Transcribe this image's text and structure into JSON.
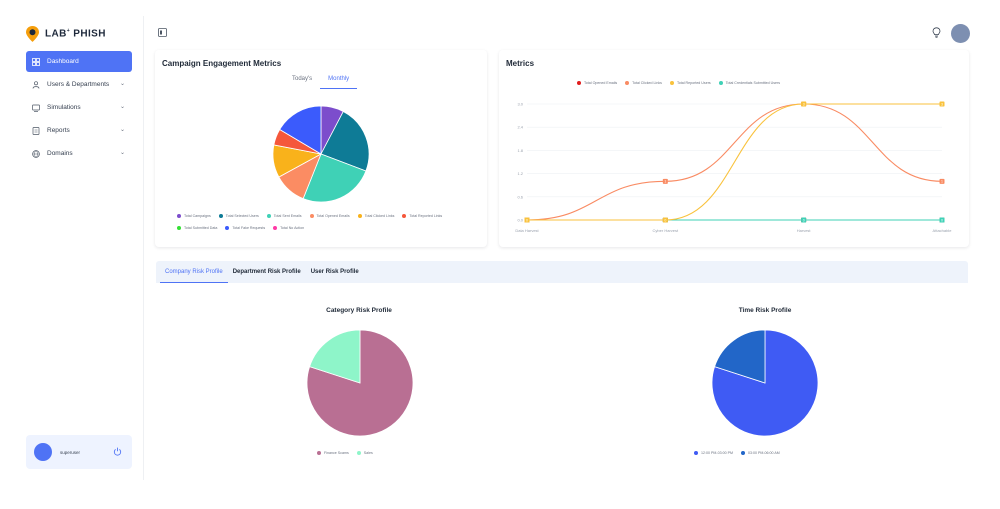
{
  "brand": {
    "name": "LAB",
    "super": "+",
    "name2": "PHISH"
  },
  "sidebar": {
    "items": [
      {
        "label": "Dashboard",
        "icon": "dashboard-icon",
        "active": true
      },
      {
        "label": "Users & Departments",
        "icon": "users-icon"
      },
      {
        "label": "Simulations",
        "icon": "simulation-icon"
      },
      {
        "label": "Reports",
        "icon": "report-icon"
      },
      {
        "label": "Domains",
        "icon": "globe-icon"
      }
    ],
    "user": {
      "name": "superuser"
    }
  },
  "engagement": {
    "title": "Campaign Engagement Metrics",
    "tabs": [
      "Today's",
      "Monthly"
    ],
    "active_tab": "Monthly",
    "legend": [
      {
        "label": "Total Campaigns",
        "color": "#7c4dcc"
      },
      {
        "label": "Total Selected Users",
        "color": "#0e7b96"
      },
      {
        "label": "Total Sent Emails",
        "color": "#3fd1b6"
      },
      {
        "label": "Total Opened Emails",
        "color": "#fb8c63"
      },
      {
        "label": "Total Clicked Links",
        "color": "#f9b21b"
      },
      {
        "label": "Total Reported Links",
        "color": "#f5573b"
      },
      {
        "label": "Total Submitted Data",
        "color": "#34e034"
      },
      {
        "label": "Total Fake Requests",
        "color": "#3b5bfc"
      },
      {
        "label": "Total No Action",
        "color": "#ff3aa6"
      }
    ]
  },
  "metrics": {
    "title": "Metrics",
    "legend": [
      {
        "label": "Total Opened Emails",
        "color": "#e11d1d"
      },
      {
        "label": "Total Clicked Links",
        "color": "#f98b63"
      },
      {
        "label": "Total Reported Users",
        "color": "#f9c23c"
      },
      {
        "label": "Total Credentials Submitted Users",
        "color": "#3fd1b6"
      }
    ]
  },
  "risk": {
    "tabs": [
      "Company Risk Profile",
      "Department Risk Profile",
      "User Risk Profile"
    ],
    "active_tab": "Company Risk Profile",
    "category": {
      "title": "Category Risk Profile",
      "legend": [
        {
          "label": "Finance Scams",
          "color": "#b96f93"
        },
        {
          "label": "Sales",
          "color": "#8ef5c9"
        }
      ]
    },
    "time": {
      "title": "Time Risk Profile",
      "legend": [
        {
          "label": "12:00 PM-03:00 PM",
          "color": "#3f5bf4"
        },
        {
          "label": "03:00 PM-06:00 AM",
          "color": "#2266c8"
        }
      ]
    }
  },
  "chart_data": [
    {
      "type": "pie",
      "title": "Campaign Engagement Metrics",
      "labels": [
        "Total Campaigns",
        "Total Selected Users",
        "Total Sent Emails",
        "Total Opened Emails",
        "Total Clicked Links",
        "Total Reported Links",
        "Total Fake Requests"
      ],
      "values": [
        7,
        21,
        23,
        10,
        10,
        5,
        15
      ],
      "colors": [
        "#7c4dcc",
        "#0e7b96",
        "#3fd1b6",
        "#fb8c63",
        "#f9b21b",
        "#f5573b",
        "#3b5bfc"
      ]
    },
    {
      "type": "line",
      "title": "Metrics",
      "categories": [
        "Data Harvest",
        "Cyber Harvest",
        "Harvest",
        "Attachable"
      ],
      "y_ticks": [
        0.0,
        0.6,
        1.2,
        1.8,
        2.4,
        3.0
      ],
      "ylim": [
        0,
        3
      ],
      "series": [
        {
          "name": "Total Opened Emails",
          "color": "#e11d1d",
          "values": [
            0,
            0,
            0,
            0
          ]
        },
        {
          "name": "Total Clicked Links",
          "color": "#f98b63",
          "values": [
            0,
            1,
            3,
            1
          ]
        },
        {
          "name": "Total Reported Users",
          "color": "#f9c23c",
          "values": [
            0,
            0,
            3,
            3
          ]
        },
        {
          "name": "Total Credentials Submitted Users",
          "color": "#3fd1b6",
          "values": [
            0,
            0,
            0,
            0
          ]
        }
      ]
    },
    {
      "type": "pie",
      "title": "Category Risk Profile",
      "labels": [
        "Finance Scams",
        "Sales"
      ],
      "values": [
        80,
        20
      ],
      "colors": [
        "#b96f93",
        "#8ef5c9"
      ]
    },
    {
      "type": "pie",
      "title": "Time Risk Profile",
      "labels": [
        "12:00 PM-03:00 PM",
        "03:00 PM-06:00 AM"
      ],
      "values": [
        80,
        20
      ],
      "colors": [
        "#3f5bf4",
        "#2266c8"
      ]
    }
  ]
}
